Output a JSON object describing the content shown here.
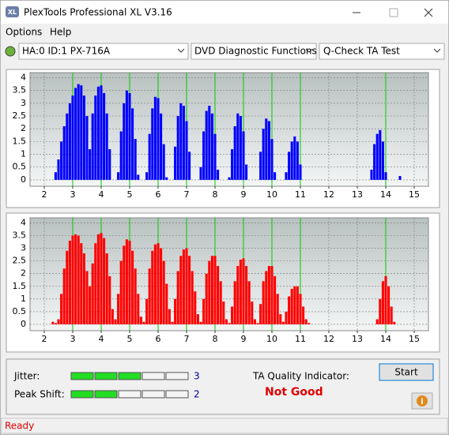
{
  "window": {
    "title": "PlexTools Professional XL V3.16",
    "menu": [
      "Options",
      "Help"
    ],
    "drive": "HA:0 ID:1  PX-716A",
    "function": "DVD Diagnostic Functions",
    "test": "Q-Check TA Test",
    "jitter_label": "Jitter:",
    "jitter": 3,
    "peak_shift_label": "Peak Shift:",
    "peak_shift": 2,
    "quality_label": "TA Quality Indicator:",
    "quality": "Not Good",
    "start": "Start",
    "status": "Ready"
  },
  "chart_data": [
    {
      "type": "bar",
      "color": "#0000ff",
      "marker_color": "#00cc00",
      "grid": true,
      "xlim": [
        1.5,
        15.5
      ],
      "ylim": [
        -0.25,
        4.2
      ],
      "xticks": [
        2,
        3,
        4,
        5,
        6,
        7,
        8,
        9,
        10,
        11,
        12,
        13,
        14,
        15
      ],
      "yticks": [
        0,
        0.5,
        1,
        1.5,
        2,
        2.5,
        3,
        3.5,
        4
      ],
      "markers": [
        3,
        4,
        5,
        6,
        7,
        8,
        9,
        10,
        11,
        14
      ],
      "x": [
        2.3,
        2.4,
        2.5,
        2.6,
        2.7,
        2.8,
        2.9,
        3.0,
        3.1,
        3.2,
        3.3,
        3.4,
        3.5,
        3.6,
        3.7,
        3.8,
        3.9,
        4.0,
        4.1,
        4.2,
        4.3,
        4.4,
        4.5,
        4.6,
        4.7,
        4.8,
        4.9,
        5.0,
        5.1,
        5.2,
        5.3,
        5.4,
        5.5,
        5.6,
        5.7,
        5.8,
        5.9,
        6.0,
        6.1,
        6.2,
        6.3,
        6.4,
        6.5,
        6.6,
        6.7,
        6.8,
        6.9,
        7.0,
        7.1,
        7.2,
        7.3,
        7.4,
        7.5,
        7.6,
        7.7,
        7.8,
        7.9,
        8.0,
        8.1,
        8.2,
        8.3,
        8.4,
        8.5,
        8.6,
        8.7,
        8.8,
        8.9,
        9.0,
        9.1,
        9.2,
        9.3,
        9.4,
        9.5,
        9.6,
        9.7,
        9.8,
        9.9,
        10.0,
        10.1,
        10.2,
        10.3,
        10.4,
        10.5,
        10.6,
        10.7,
        10.8,
        10.9,
        11.0,
        11.1,
        11.2,
        11.3,
        11.4,
        11.5,
        11.6,
        11.7,
        11.8,
        11.9,
        12.0,
        12.1,
        12.2,
        12.3,
        12.4,
        12.5,
        12.6,
        12.7,
        12.8,
        12.9,
        13.0,
        13.1,
        13.2,
        13.3,
        13.4,
        13.5,
        13.6,
        13.7,
        13.8,
        13.9,
        14.0,
        14.1,
        14.2,
        14.3,
        14.4,
        14.5,
        14.6
      ],
      "values": [
        0,
        0.3,
        0.8,
        1.5,
        2.1,
        2.6,
        3.0,
        3.3,
        3.6,
        3.75,
        3.7,
        3.3,
        2.5,
        1.2,
        2.6,
        3.3,
        3.65,
        3.7,
        3.4,
        2.6,
        1.2,
        0,
        0,
        0.3,
        1.9,
        3.0,
        3.5,
        3.4,
        2.8,
        1.6,
        0.2,
        0,
        0,
        0.3,
        1.8,
        2.8,
        3.25,
        3.2,
        2.6,
        1.4,
        0.1,
        0,
        0,
        1.3,
        2.5,
        3.0,
        2.9,
        2.3,
        1.1,
        0,
        0,
        0,
        0.5,
        1.9,
        2.7,
        2.9,
        2.6,
        1.8,
        0.4,
        0,
        0,
        0,
        0.1,
        1.2,
        2.1,
        2.6,
        2.5,
        1.9,
        0.6,
        0,
        0,
        0,
        0,
        1.1,
        2.0,
        2.4,
        2.3,
        1.6,
        0.3,
        0,
        0,
        0,
        0.3,
        1.1,
        1.5,
        1.7,
        1.5,
        0.6,
        0,
        0,
        0,
        0,
        0,
        0,
        0,
        0,
        0,
        0,
        0,
        0,
        0,
        0,
        0,
        0,
        0,
        0,
        0,
        0,
        0,
        0,
        0,
        0,
        0.4,
        1.4,
        1.8,
        1.95,
        1.5,
        0.3,
        0,
        0,
        0,
        0,
        0.15,
        0
      ]
    },
    {
      "type": "bar",
      "color": "#ff0000",
      "marker_color": "#00cc00",
      "grid": true,
      "xlim": [
        1.5,
        15.5
      ],
      "ylim": [
        -0.25,
        4.2
      ],
      "xticks": [
        2,
        3,
        4,
        5,
        6,
        7,
        8,
        9,
        10,
        11,
        12,
        13,
        14,
        15
      ],
      "yticks": [
        0,
        0.5,
        1,
        1.5,
        2,
        2.5,
        3,
        3.5,
        4
      ],
      "markers": [
        3,
        4,
        5,
        6,
        7,
        8,
        9,
        10,
        11,
        14
      ],
      "x": [
        2.3,
        2.4,
        2.5,
        2.6,
        2.7,
        2.8,
        2.9,
        3.0,
        3.1,
        3.2,
        3.3,
        3.4,
        3.5,
        3.6,
        3.7,
        3.8,
        3.9,
        4.0,
        4.1,
        4.2,
        4.3,
        4.4,
        4.5,
        4.6,
        4.7,
        4.8,
        4.9,
        5.0,
        5.1,
        5.2,
        5.3,
        5.4,
        5.5,
        5.6,
        5.7,
        5.8,
        5.9,
        6.0,
        6.1,
        6.2,
        6.3,
        6.4,
        6.5,
        6.6,
        6.7,
        6.8,
        6.9,
        7.0,
        7.1,
        7.2,
        7.3,
        7.4,
        7.5,
        7.6,
        7.7,
        7.8,
        7.9,
        8.0,
        8.1,
        8.2,
        8.3,
        8.4,
        8.5,
        8.6,
        8.7,
        8.8,
        8.9,
        9.0,
        9.1,
        9.2,
        9.3,
        9.4,
        9.5,
        9.6,
        9.7,
        9.8,
        9.9,
        10.0,
        10.1,
        10.2,
        10.3,
        10.4,
        10.5,
        10.6,
        10.7,
        10.8,
        10.9,
        11.0,
        11.1,
        11.2,
        11.3,
        11.4,
        11.5,
        11.6,
        11.7,
        11.8,
        11.9,
        12.0,
        12.1,
        12.2,
        12.3,
        12.4,
        12.5,
        12.6,
        12.7,
        12.8,
        12.9,
        13.0,
        13.1,
        13.2,
        13.3,
        13.4,
        13.5,
        13.6,
        13.7,
        13.8,
        13.9,
        14.0,
        14.1,
        14.2,
        14.3,
        14.4,
        14.5,
        14.6
      ],
      "values": [
        0.1,
        0.05,
        0.2,
        1.2,
        2.2,
        2.9,
        3.3,
        3.5,
        3.55,
        3.5,
        3.2,
        2.8,
        2.1,
        1.5,
        2.4,
        3.2,
        3.55,
        3.6,
        3.4,
        2.8,
        1.9,
        0.6,
        0.2,
        1.2,
        2.5,
        3.1,
        3.35,
        3.3,
        2.9,
        2.2,
        1.2,
        0.3,
        0.1,
        1.0,
        2.2,
        2.9,
        3.15,
        3.2,
        3.0,
        2.5,
        1.6,
        0.6,
        0.1,
        1.0,
        2.1,
        2.7,
        2.95,
        3.0,
        2.7,
        2.1,
        1.3,
        0.4,
        0.1,
        1.0,
        2.0,
        2.5,
        2.7,
        2.7,
        2.3,
        1.7,
        0.9,
        0.2,
        0.05,
        0.7,
        1.7,
        2.3,
        2.55,
        2.6,
        2.3,
        1.7,
        0.9,
        0.2,
        0.05,
        0.8,
        1.7,
        2.1,
        2.3,
        2.3,
        1.9,
        1.2,
        0.4,
        0.1,
        0.5,
        1.1,
        1.4,
        1.5,
        1.5,
        1.2,
        0.7,
        0.2,
        0.05,
        0,
        0,
        0,
        0,
        0,
        0,
        0,
        0,
        0,
        0,
        0,
        0,
        0,
        0,
        0,
        0,
        0,
        0,
        0,
        0,
        0,
        0,
        0,
        0.2,
        1.0,
        1.7,
        1.9,
        1.5,
        0.7,
        0.1,
        0,
        0,
        0
      ]
    }
  ]
}
